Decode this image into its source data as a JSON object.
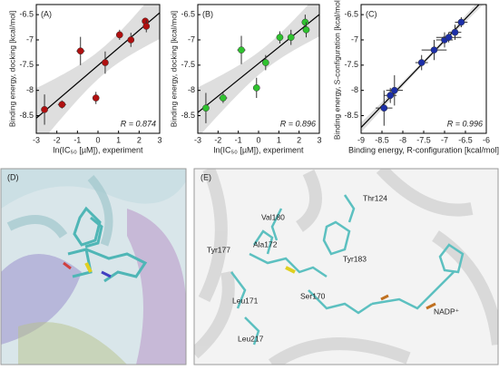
{
  "chart_data": [
    {
      "type": "scatter",
      "panel_label": "(A)",
      "color": "#b01010",
      "xlabel": "ln(IC₅₀ [µM]), experiment",
      "ylabel": "Binding energy, docking [kcal/mol]",
      "annotation": "R = 0.874",
      "x": [
        -2.6,
        -1.75,
        -0.85,
        -0.1,
        0.35,
        1.05,
        1.6,
        2.3,
        2.35
      ],
      "xerr": [
        0,
        0.2,
        0.2,
        0,
        0,
        0,
        0,
        0,
        0
      ],
      "values": [
        -8.38,
        -8.28,
        -7.22,
        -8.15,
        -7.45,
        -6.9,
        -7.0,
        -6.63,
        -6.73
      ],
      "yerr": [
        0.3,
        0.08,
        0.28,
        0.12,
        0.22,
        0.1,
        0.14,
        0.07,
        0.12
      ],
      "xlim": [
        -3,
        3
      ],
      "xticks": [
        -3,
        -2,
        -1,
        0,
        1,
        2,
        3
      ],
      "ylim": [
        -8.85,
        -6.3
      ],
      "yticks": [
        -8.5,
        -8,
        -7.5,
        -7,
        -6.5
      ]
    },
    {
      "type": "scatter",
      "panel_label": "(B)",
      "color": "#2fc22f",
      "xlabel": "ln(IC₅₀ [µM]), experiment",
      "ylabel": "Binding energy, docking [kcal/mol]",
      "annotation": "R = 0.896",
      "x": [
        -2.6,
        -1.75,
        -0.85,
        -0.1,
        0.35,
        1.05,
        1.6,
        2.3,
        2.35
      ],
      "xerr": [
        0,
        0.2,
        0.2,
        0,
        0,
        0,
        0,
        0,
        0
      ],
      "values": [
        -8.35,
        -8.15,
        -7.2,
        -7.95,
        -7.45,
        -6.95,
        -6.95,
        -6.65,
        -6.8
      ],
      "yerr": [
        0.3,
        0.1,
        0.28,
        0.2,
        0.15,
        0.12,
        0.15,
        0.15,
        0.15
      ],
      "xlim": [
        -3,
        3
      ],
      "xticks": [
        -3,
        -2,
        -1,
        0,
        1,
        2,
        3
      ],
      "ylim": [
        -8.85,
        -6.3
      ],
      "yticks": [
        -8.5,
        -8,
        -7.5,
        -7,
        -6.5
      ]
    },
    {
      "type": "scatter",
      "panel_label": "(C)",
      "color": "#1c2fa8",
      "xlabel": "Binding energy, R-configuration [kcal/mol]",
      "ylabel": "Binding energy, S-configuration [kcal/mol]",
      "annotation": "R = 0.996",
      "x": [
        -8.45,
        -8.3,
        -8.2,
        -7.55,
        -7.25,
        -7.0,
        -6.9,
        -6.75,
        -6.6
      ],
      "xerr": [
        0.2,
        0.15,
        0.2,
        0.15,
        0.3,
        0.2,
        0.3,
        0.15,
        0.15
      ],
      "values": [
        -8.35,
        -8.1,
        -8.0,
        -7.45,
        -7.2,
        -7.0,
        -6.95,
        -6.85,
        -6.65
      ],
      "yerr": [
        0.35,
        0.15,
        0.3,
        0.15,
        0.2,
        0.15,
        0.1,
        0.15,
        0.1
      ],
      "xlim": [
        -9,
        -6
      ],
      "xticks": [
        -9,
        -8.5,
        -8,
        -7.5,
        -7,
        -6.5,
        -6
      ],
      "ylim": [
        -8.85,
        -6.3
      ],
      "yticks": [
        -8.5,
        -8,
        -7.5,
        -7,
        -6.5
      ]
    }
  ],
  "images": {
    "D": {
      "label": "(D)"
    },
    "E": {
      "label": "(E)",
      "residues": [
        "Val180",
        "Thr124",
        "Tyr177",
        "Ala172",
        "Tyr183",
        "Ser170",
        "Leu171",
        "NADP⁺",
        "Leu217"
      ]
    }
  }
}
